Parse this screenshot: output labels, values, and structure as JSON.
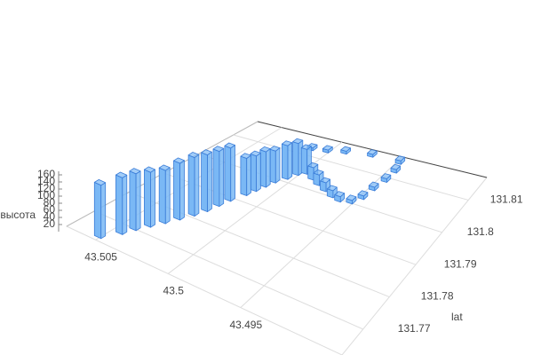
{
  "chart_data": {
    "type": "bar3d",
    "ylabel": "lat",
    "zlabel": "высота",
    "x": [
      43.5051,
      43.5045,
      43.5042,
      43.5038,
      43.5034,
      43.503,
      43.5026,
      43.5023,
      43.5021,
      43.5019,
      43.5015,
      43.5013,
      43.5011,
      43.5009,
      43.5005,
      43.5002,
      43.4998,
      43.499,
      43.4983,
      43.4975,
      43.4967,
      43.496,
      43.4952,
      43.4948,
      43.4947,
      43.4945,
      43.4945,
      43.4948,
      43.4971,
      43.499,
      43.5002,
      43.5013
    ],
    "y": [
      131.7637,
      131.7675,
      131.7703,
      131.773,
      131.7758,
      131.7785,
      131.7813,
      131.784,
      131.7868,
      131.7895,
      131.7928,
      131.795,
      131.7972,
      131.7994,
      131.8016,
      131.8038,
      131.8049,
      131.8038,
      131.8027,
      131.8016,
      131.8005,
      131.8,
      131.8005,
      131.8027,
      131.806,
      131.8093,
      131.8126,
      131.8154,
      131.8154,
      131.8143,
      131.8132,
      131.8126
    ],
    "z": [
      150,
      160,
      160,
      155,
      150,
      160,
      165,
      160,
      155,
      150,
      105,
      100,
      100,
      90,
      95,
      90,
      70,
      35,
      30,
      25,
      20,
      15,
      10,
      10,
      10,
      10,
      10,
      10,
      8,
      8,
      8,
      8
    ],
    "color": "#7ab8f5",
    "edge_color": "#3b7dd8",
    "xlim": [
      43.507,
      43.488
    ],
    "xticks": [
      43.505,
      43.5,
      43.495
    ],
    "ylim": [
      131.762,
      131.817
    ],
    "yticks": [
      131.77,
      131.78,
      131.79,
      131.8,
      131.81
    ],
    "zlim": [
      0,
      170
    ],
    "zticks": [
      20,
      40,
      60,
      80,
      100,
      120,
      140,
      160
    ],
    "grid": true
  }
}
